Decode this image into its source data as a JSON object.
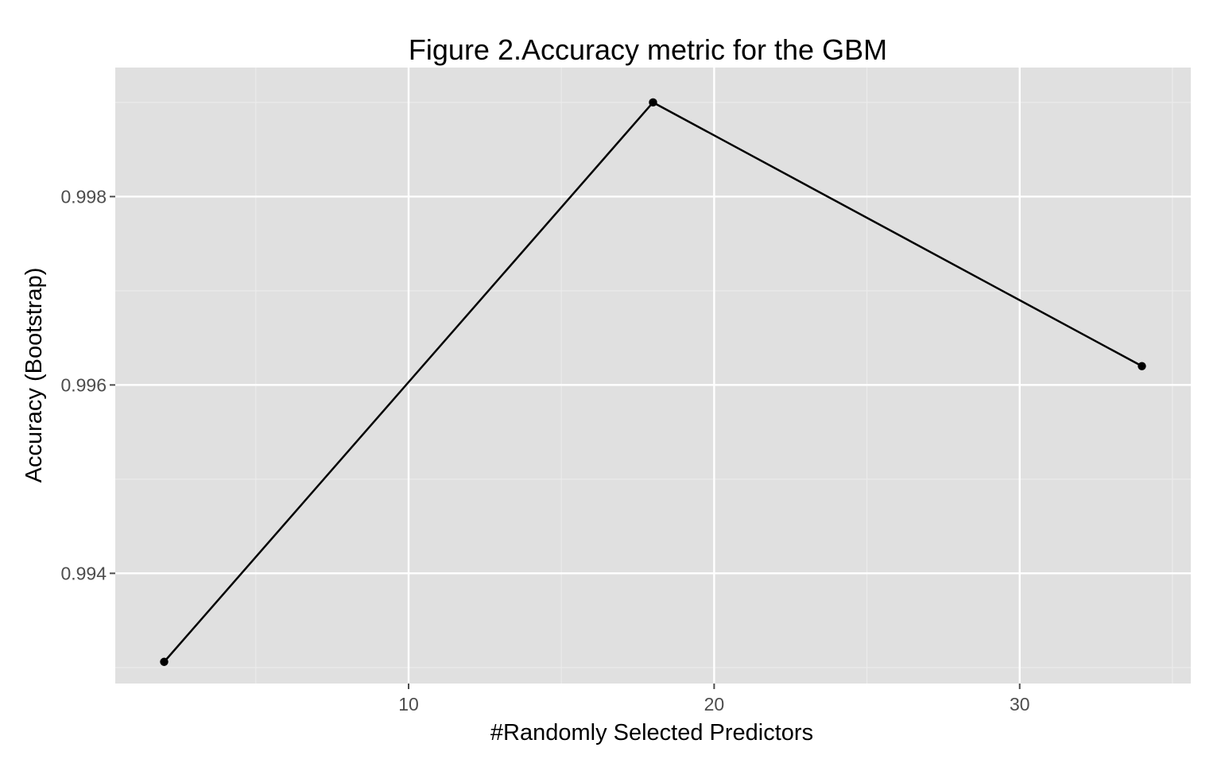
{
  "chart_data": {
    "type": "line",
    "title": "Figure 2.Accuracy metric for the GBM",
    "xlabel": "#Randomly Selected Predictors",
    "ylabel": "Accuracy (Bootstrap)",
    "x_ticks": [
      10,
      20,
      30
    ],
    "y_ticks": [
      0.994,
      0.996,
      0.998
    ],
    "xlim": [
      0.4,
      35.6
    ],
    "ylim": [
      0.99283,
      0.99937
    ],
    "grid": true,
    "legend": "none",
    "series": [
      {
        "x": [
          2,
          18,
          34
        ],
        "y": [
          0.99306,
          0.999,
          0.9962
        ]
      }
    ],
    "colors": {
      "panel_background": "#e0e0e0",
      "grid_major": "#ffffff",
      "grid_minor": "#ebebeb",
      "line": "#000000",
      "point": "#000000",
      "tick_label": "#4d4d4d"
    }
  }
}
